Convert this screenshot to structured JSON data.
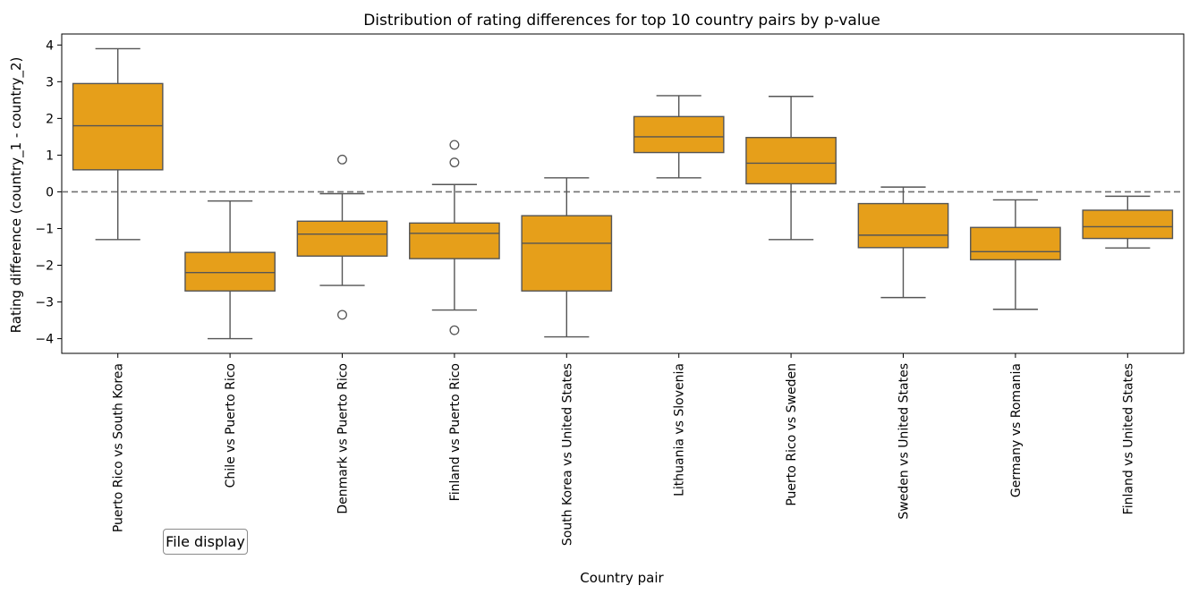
{
  "file_display_button": {
    "label": "File display"
  },
  "chart_data": {
    "type": "box",
    "title": "Distribution of rating differences for top 10 country pairs by p-value",
    "xlabel": "Country pair",
    "ylabel": "Rating difference (country_1 - country_2)",
    "ylim": [
      -4.4,
      4.3
    ],
    "yticks": [
      4,
      3,
      2,
      1,
      0,
      -1,
      -2,
      -3,
      -4
    ],
    "ytick_labels": [
      "4",
      "3",
      "2",
      "1",
      "0",
      "−1",
      "−2",
      "−3",
      "−4"
    ],
    "reference_line": {
      "y": 0,
      "style": "dashed"
    },
    "box_color": "#e69f1a",
    "edge_color": "#555555",
    "categories": [
      "Puerto Rico vs South Korea",
      "Chile vs Puerto Rico",
      "Denmark vs Puerto Rico",
      "Finland vs Puerto Rico",
      "South Korea vs United States",
      "Lithuania vs Slovenia",
      "Puerto Rico vs Sweden",
      "Sweden vs United States",
      "Germany vs Romania",
      "Finland vs United States"
    ],
    "boxes": [
      {
        "whisker_low": -1.3,
        "q1": 0.6,
        "median": 1.8,
        "q3": 2.95,
        "whisker_high": 3.9,
        "outliers": []
      },
      {
        "whisker_low": -4.0,
        "q1": -2.7,
        "median": -2.2,
        "q3": -1.65,
        "whisker_high": -0.25,
        "outliers": []
      },
      {
        "whisker_low": -2.55,
        "q1": -1.75,
        "median": -1.15,
        "q3": -0.8,
        "whisker_high": -0.05,
        "outliers": [
          0.88,
          -3.35
        ]
      },
      {
        "whisker_low": -3.22,
        "q1": -1.82,
        "median": -1.13,
        "q3": -0.85,
        "whisker_high": 0.2,
        "outliers": [
          1.28,
          0.8,
          -3.77
        ]
      },
      {
        "whisker_low": -3.95,
        "q1": -2.7,
        "median": -1.4,
        "q3": -0.65,
        "whisker_high": 0.38,
        "outliers": []
      },
      {
        "whisker_low": 0.38,
        "q1": 1.07,
        "median": 1.5,
        "q3": 2.05,
        "whisker_high": 2.62,
        "outliers": []
      },
      {
        "whisker_low": -1.3,
        "q1": 0.22,
        "median": 0.78,
        "q3": 1.48,
        "whisker_high": 2.6,
        "outliers": []
      },
      {
        "whisker_low": -2.88,
        "q1": -1.52,
        "median": -1.18,
        "q3": -0.32,
        "whisker_high": 0.13,
        "outliers": []
      },
      {
        "whisker_low": -3.2,
        "q1": -1.85,
        "median": -1.63,
        "q3": -0.97,
        "whisker_high": -0.22,
        "outliers": []
      },
      {
        "whisker_low": -1.53,
        "q1": -1.27,
        "median": -0.95,
        "q3": -0.5,
        "whisker_high": -0.12,
        "outliers": []
      }
    ]
  }
}
